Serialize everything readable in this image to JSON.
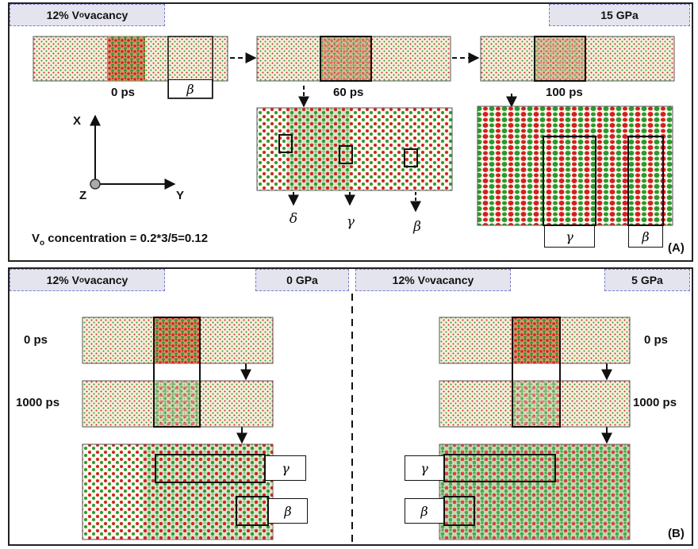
{
  "panelA": {
    "vacancy_tag": "12% V",
    "vacancy_sub": "o",
    "vacancy_rest": " vacancy",
    "pressure_tag": "15 GPa",
    "times": [
      "0 ps",
      "60 ps",
      "100 ps"
    ],
    "axes": {
      "x": "X",
      "y": "Y",
      "z": "Z"
    },
    "conc_prefix": "V",
    "conc_sub": "o",
    "conc_rest": " concentration =  0.2*3/5=0.12",
    "phase_labels_60": [
      "δ",
      "γ",
      "β"
    ],
    "phase_labels_100": [
      "γ",
      "β"
    ],
    "strip_label": "β",
    "panel_id": "(A)"
  },
  "panelB": {
    "left": {
      "vacancy_tag": "12% V",
      "vacancy_sub": "o",
      "vacancy_rest": " vacancy",
      "pressure_tag": "0 GPa",
      "times": [
        "0 ps",
        "1000 ps"
      ],
      "phase_labels": [
        "γ",
        "β"
      ]
    },
    "right": {
      "vacancy_tag": "12% V",
      "vacancy_sub": "o",
      "vacancy_rest": " vacancy",
      "pressure_tag": "5 GPa",
      "times": [
        "0 ps",
        "1000 ps"
      ],
      "phase_labels": [
        "γ",
        "β"
      ]
    },
    "panel_id": "(B)"
  },
  "colors": {
    "oxygen": "#d42020",
    "metal": "#2a9a2a",
    "background_strip": "#f2ecd9"
  }
}
